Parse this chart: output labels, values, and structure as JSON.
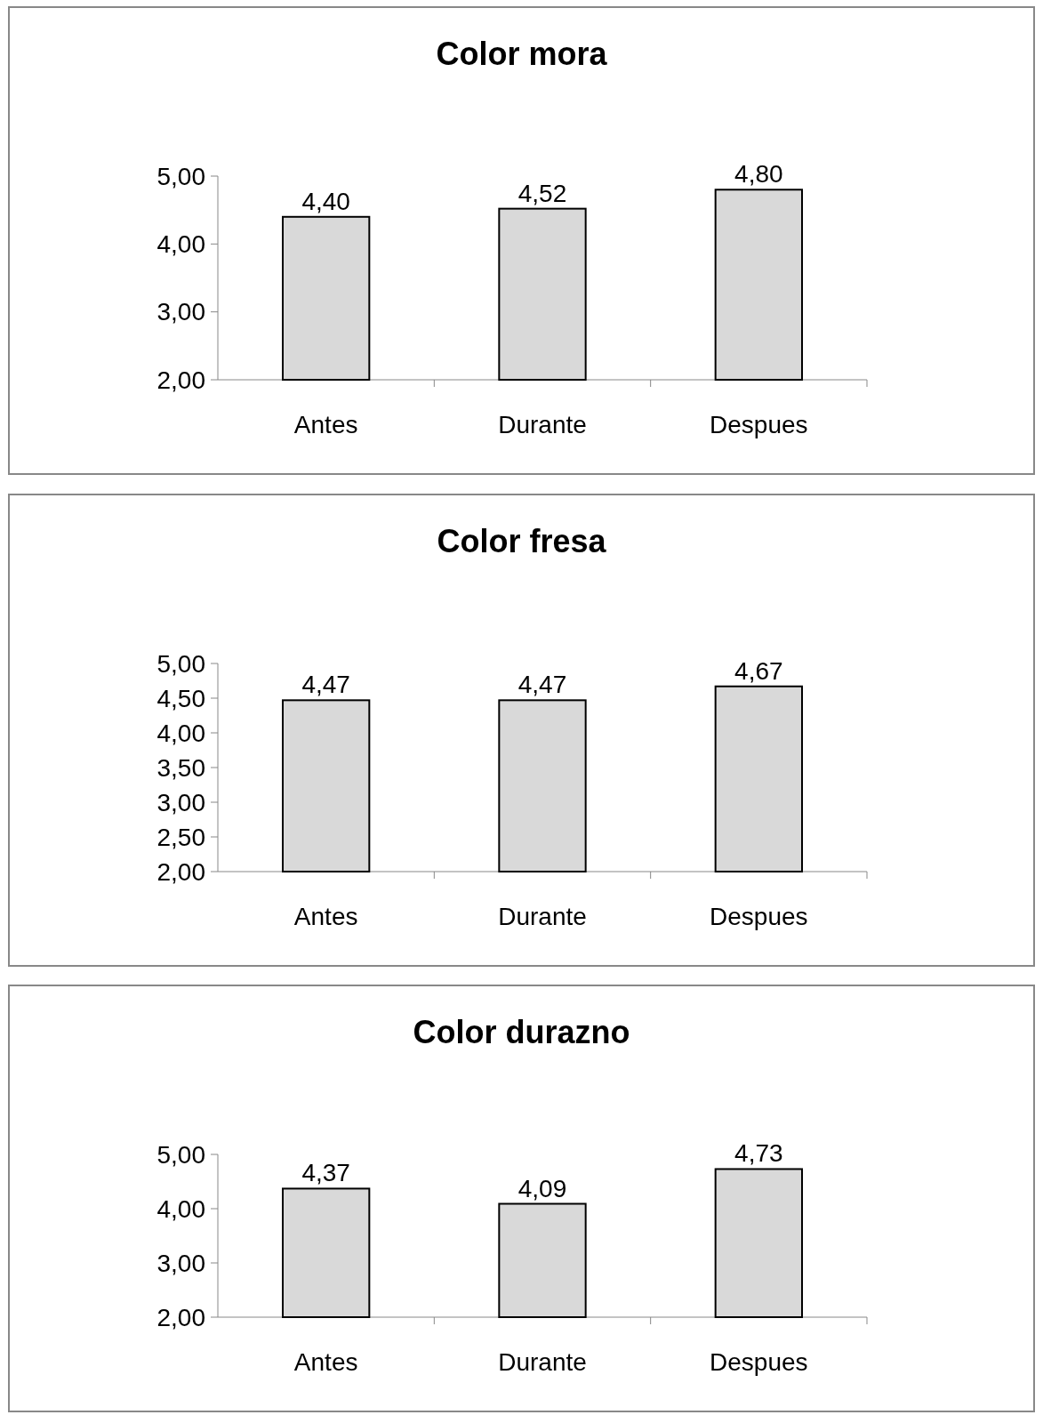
{
  "chart_data": [
    {
      "type": "bar",
      "title": "Color mora",
      "categories": [
        "Antes",
        "Durante",
        "Despues"
      ],
      "values": [
        4.4,
        4.52,
        4.8
      ],
      "value_labels": [
        "4,40",
        "4,52",
        "4,80"
      ],
      "color": "#d9d9d9",
      "ylim": [
        2,
        5
      ],
      "yticks": [
        {
          "value": 2,
          "label": "2,00"
        },
        {
          "value": 3,
          "label": "3,00"
        },
        {
          "value": 4,
          "label": "4,00"
        },
        {
          "value": 5,
          "label": "5,00"
        }
      ]
    },
    {
      "type": "bar",
      "title": "Color fresa",
      "categories": [
        "Antes",
        "Durante",
        "Despues"
      ],
      "values": [
        4.47,
        4.47,
        4.67
      ],
      "value_labels": [
        "4,47",
        "4,47",
        "4,67"
      ],
      "color": "#d9d9d9",
      "ylim": [
        2,
        5
      ],
      "yticks": [
        {
          "value": 2,
          "label": "2,00"
        },
        {
          "value": 2.5,
          "label": "2,50"
        },
        {
          "value": 3,
          "label": "3,00"
        },
        {
          "value": 3.5,
          "label": "3,50"
        },
        {
          "value": 4,
          "label": "4,00"
        },
        {
          "value": 4.5,
          "label": "4,50"
        },
        {
          "value": 5,
          "label": "5,00"
        }
      ]
    },
    {
      "type": "bar",
      "title": "Color durazno",
      "categories": [
        "Antes",
        "Durante",
        "Despues"
      ],
      "values": [
        4.37,
        4.09,
        4.73
      ],
      "value_labels": [
        "4,37",
        "4,09",
        "4,73"
      ],
      "color": "#d9d9d9",
      "ylim": [
        2,
        5
      ],
      "yticks": [
        {
          "value": 2,
          "label": "2,00"
        },
        {
          "value": 3,
          "label": "3,00"
        },
        {
          "value": 4,
          "label": "4,00"
        },
        {
          "value": 5,
          "label": "5,00"
        }
      ]
    }
  ]
}
